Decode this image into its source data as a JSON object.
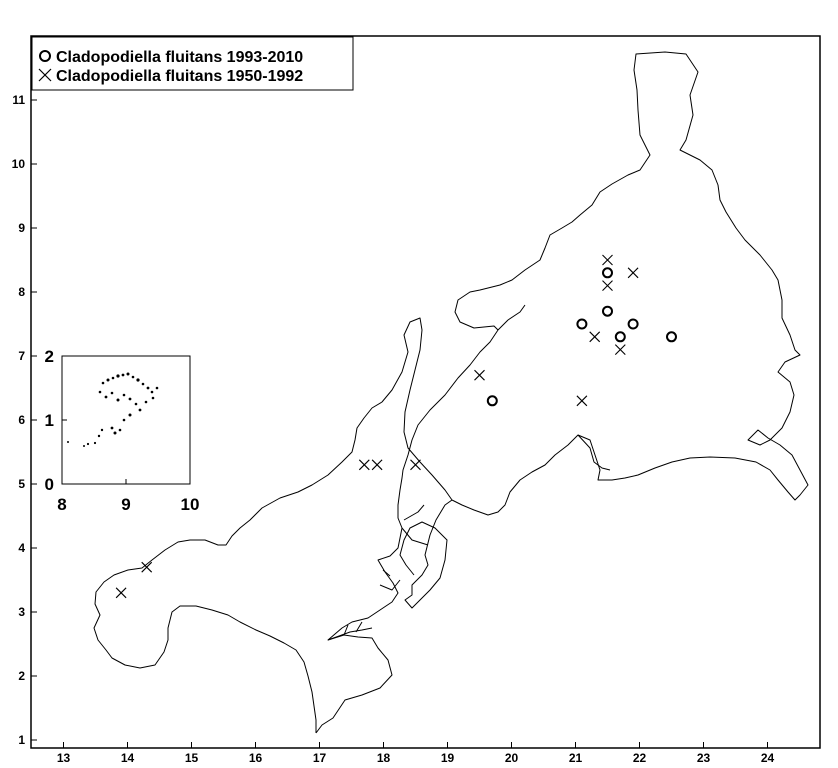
{
  "chart_data": {
    "type": "scatter",
    "title": "",
    "xlabel": "",
    "ylabel": "",
    "xlim": [
      12.6,
      24.8
    ],
    "ylim": [
      0.9,
      11.9
    ],
    "x_ticks": [
      13,
      14,
      15,
      16,
      17,
      18,
      19,
      20,
      21,
      22,
      23,
      24
    ],
    "y_ticks": [
      1,
      2,
      3,
      4,
      5,
      6,
      7,
      8,
      9,
      10,
      11
    ],
    "grid": false,
    "legend_position": "top-left",
    "series": [
      {
        "name": "Cladopodiella fluitans 1993-2010",
        "marker": "circle",
        "color": "#000000",
        "points": [
          [
            21.5,
            8.3
          ],
          [
            21.5,
            7.7
          ],
          [
            21.1,
            7.5
          ],
          [
            21.7,
            7.3
          ],
          [
            21.9,
            7.5
          ],
          [
            22.5,
            7.3
          ],
          [
            19.7,
            6.3
          ]
        ]
      },
      {
        "name": "Cladopodiella fluitans 1950-1992",
        "marker": "cross",
        "color": "#000000",
        "points": [
          [
            21.5,
            8.5
          ],
          [
            21.5,
            8.1
          ],
          [
            21.9,
            8.3
          ],
          [
            21.3,
            7.3
          ],
          [
            21.7,
            7.1
          ],
          [
            19.5,
            6.7
          ],
          [
            21.1,
            6.3
          ],
          [
            17.7,
            5.3
          ],
          [
            17.9,
            5.3
          ],
          [
            18.5,
            5.3
          ],
          [
            14.3,
            3.7
          ],
          [
            13.9,
            3.3
          ]
        ]
      }
    ],
    "inset": {
      "x_ticks": [
        8,
        9,
        10
      ],
      "y_ticks": [
        0,
        1,
        2
      ],
      "xlim": [
        8,
        10
      ],
      "ylim": [
        0,
        2
      ]
    }
  }
}
